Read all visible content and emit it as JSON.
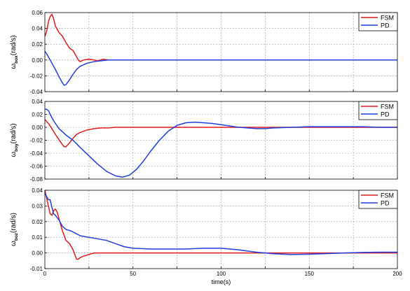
{
  "chart_data": [
    {
      "type": "line",
      "ylabel": {
        "symbol": "ω",
        "subscript": "box",
        "unit": "(rad/s)"
      },
      "xlabel": "",
      "xlim": [
        0,
        200
      ],
      "ylim": [
        -0.04,
        0.06
      ],
      "yticks": [
        "0.06",
        "0.04",
        "0.02",
        "0.00",
        "-0.02",
        "-0.04"
      ],
      "ytick_values": [
        0.06,
        0.04,
        0.02,
        0.0,
        -0.02,
        -0.04
      ],
      "xticks": [],
      "grid": true,
      "legend_position": "top-right",
      "series": [
        {
          "name": "FSM",
          "color": "#e31a1c",
          "x": [
            0,
            1,
            2,
            3,
            4,
            5,
            6,
            8,
            10,
            12,
            14,
            16,
            18,
            19,
            20,
            22,
            25,
            28,
            30,
            33,
            36,
            40,
            50,
            200
          ],
          "y": [
            0.03,
            0.036,
            0.048,
            0.055,
            0.058,
            0.052,
            0.043,
            0.035,
            0.03,
            0.022,
            0.015,
            0.012,
            0.004,
            0.0,
            -0.002,
            0.0,
            0.001,
            0.0,
            -0.001,
            0.001,
            0.0,
            0.0,
            0.0,
            0.0
          ]
        },
        {
          "name": "PD",
          "color": "#1f3fe0",
          "x": [
            0,
            1,
            2,
            4,
            6,
            8,
            10,
            11,
            12,
            14,
            16,
            18,
            20,
            24,
            28,
            32,
            36,
            40,
            50,
            200
          ],
          "y": [
            0.011,
            0.008,
            0.004,
            -0.004,
            -0.012,
            -0.021,
            -0.029,
            -0.032,
            -0.031,
            -0.025,
            -0.018,
            -0.012,
            -0.008,
            -0.004,
            -0.002,
            -0.001,
            0.0,
            0.0,
            0.0,
            0.0
          ]
        }
      ]
    },
    {
      "type": "line",
      "ylabel": {
        "symbol": "ω",
        "subscript": "boy",
        "unit": "(rad/s)"
      },
      "xlabel": "",
      "xlim": [
        0,
        200
      ],
      "ylim": [
        -0.08,
        0.04
      ],
      "yticks": [
        "0.04",
        "0.02",
        "0.00",
        "-0.02",
        "-0.04",
        "-0.06",
        "-0.08"
      ],
      "ytick_values": [
        0.04,
        0.02,
        0.0,
        -0.02,
        -0.04,
        -0.06,
        -0.08
      ],
      "xticks": [],
      "grid": true,
      "legend_position": "top-right",
      "series": [
        {
          "name": "FSM",
          "color": "#e31a1c",
          "x": [
            0,
            2,
            4,
            6,
            8,
            10,
            11,
            12,
            14,
            16,
            18,
            20,
            24,
            28,
            32,
            36,
            40,
            50,
            200
          ],
          "y": [
            0.012,
            0.006,
            -0.002,
            -0.011,
            -0.019,
            -0.027,
            -0.03,
            -0.03,
            -0.024,
            -0.017,
            -0.011,
            -0.008,
            -0.004,
            -0.002,
            -0.001,
            -0.001,
            0.0,
            0.0,
            0.0
          ]
        },
        {
          "name": "PD",
          "color": "#1f3fe0",
          "x": [
            0,
            1,
            2,
            3,
            5,
            8,
            12,
            16,
            20,
            25,
            30,
            35,
            40,
            44,
            48,
            52,
            56,
            60,
            65,
            70,
            75,
            80,
            85,
            90,
            95,
            100,
            105,
            110,
            115,
            120,
            125,
            130,
            140,
            150,
            160,
            170,
            180,
            190,
            200
          ],
          "y": [
            0.028,
            0.028,
            0.026,
            0.02,
            0.01,
            -0.002,
            -0.012,
            -0.02,
            -0.031,
            -0.044,
            -0.057,
            -0.068,
            -0.075,
            -0.077,
            -0.074,
            -0.065,
            -0.052,
            -0.037,
            -0.02,
            -0.006,
            0.003,
            0.007,
            0.008,
            0.007,
            0.006,
            0.004,
            0.002,
            0.0,
            -0.001,
            -0.002,
            -0.002,
            -0.001,
            0.0,
            0.001,
            0.001,
            0.001,
            0.001,
            0.0,
            0.0
          ]
        }
      ]
    },
    {
      "type": "line",
      "ylabel": {
        "symbol": "ω",
        "subscript": "boz",
        "unit": "(rad/s)"
      },
      "xlabel": "time(s)",
      "xlim": [
        0,
        200
      ],
      "ylim": [
        -0.01,
        0.04
      ],
      "yticks": [
        "0.04",
        "0.03",
        "0.02",
        "0.01",
        "0.00",
        "-0.01"
      ],
      "ytick_values": [
        0.04,
        0.03,
        0.02,
        0.01,
        0.0,
        -0.01
      ],
      "xticks": [
        "0",
        "50",
        "100",
        "150",
        "200"
      ],
      "xtick_values": [
        0,
        50,
        100,
        150,
        200
      ],
      "grid": true,
      "legend_position": "top-right",
      "series": [
        {
          "name": "FSM",
          "color": "#e31a1c",
          "x": [
            0,
            1,
            2,
            3,
            4,
            5,
            6,
            7,
            8,
            10,
            12,
            14,
            16,
            18,
            19,
            20,
            22,
            25,
            28,
            32,
            40,
            50,
            200
          ],
          "y": [
            0.04,
            0.035,
            0.03,
            0.025,
            0.024,
            0.027,
            0.028,
            0.026,
            0.022,
            0.014,
            0.008,
            0.006,
            0.002,
            -0.004,
            -0.004,
            -0.003,
            -0.002,
            -0.001,
            0.0,
            0.0,
            0.0,
            0.0,
            0.0
          ]
        },
        {
          "name": "PD",
          "color": "#1f3fe0",
          "x": [
            0,
            1,
            2,
            3,
            4,
            5,
            6,
            8,
            10,
            12,
            15,
            20,
            25,
            30,
            35,
            40,
            45,
            50,
            60,
            70,
            80,
            90,
            95,
            100,
            105,
            110,
            115,
            120,
            125,
            130,
            140,
            150,
            160,
            170,
            180,
            190,
            200
          ],
          "y": [
            0.038,
            0.036,
            0.034,
            0.034,
            0.029,
            0.025,
            0.024,
            0.021,
            0.017,
            0.015,
            0.014,
            0.011,
            0.01,
            0.009,
            0.008,
            0.006,
            0.004,
            0.003,
            0.0025,
            0.0025,
            0.0025,
            0.003,
            0.003,
            0.003,
            0.0025,
            0.002,
            0.0012,
            0.0005,
            0.0,
            -0.0005,
            -0.001,
            -0.0008,
            -0.0004,
            0.0,
            0.0003,
            0.0005,
            0.0005
          ]
        }
      ]
    }
  ]
}
